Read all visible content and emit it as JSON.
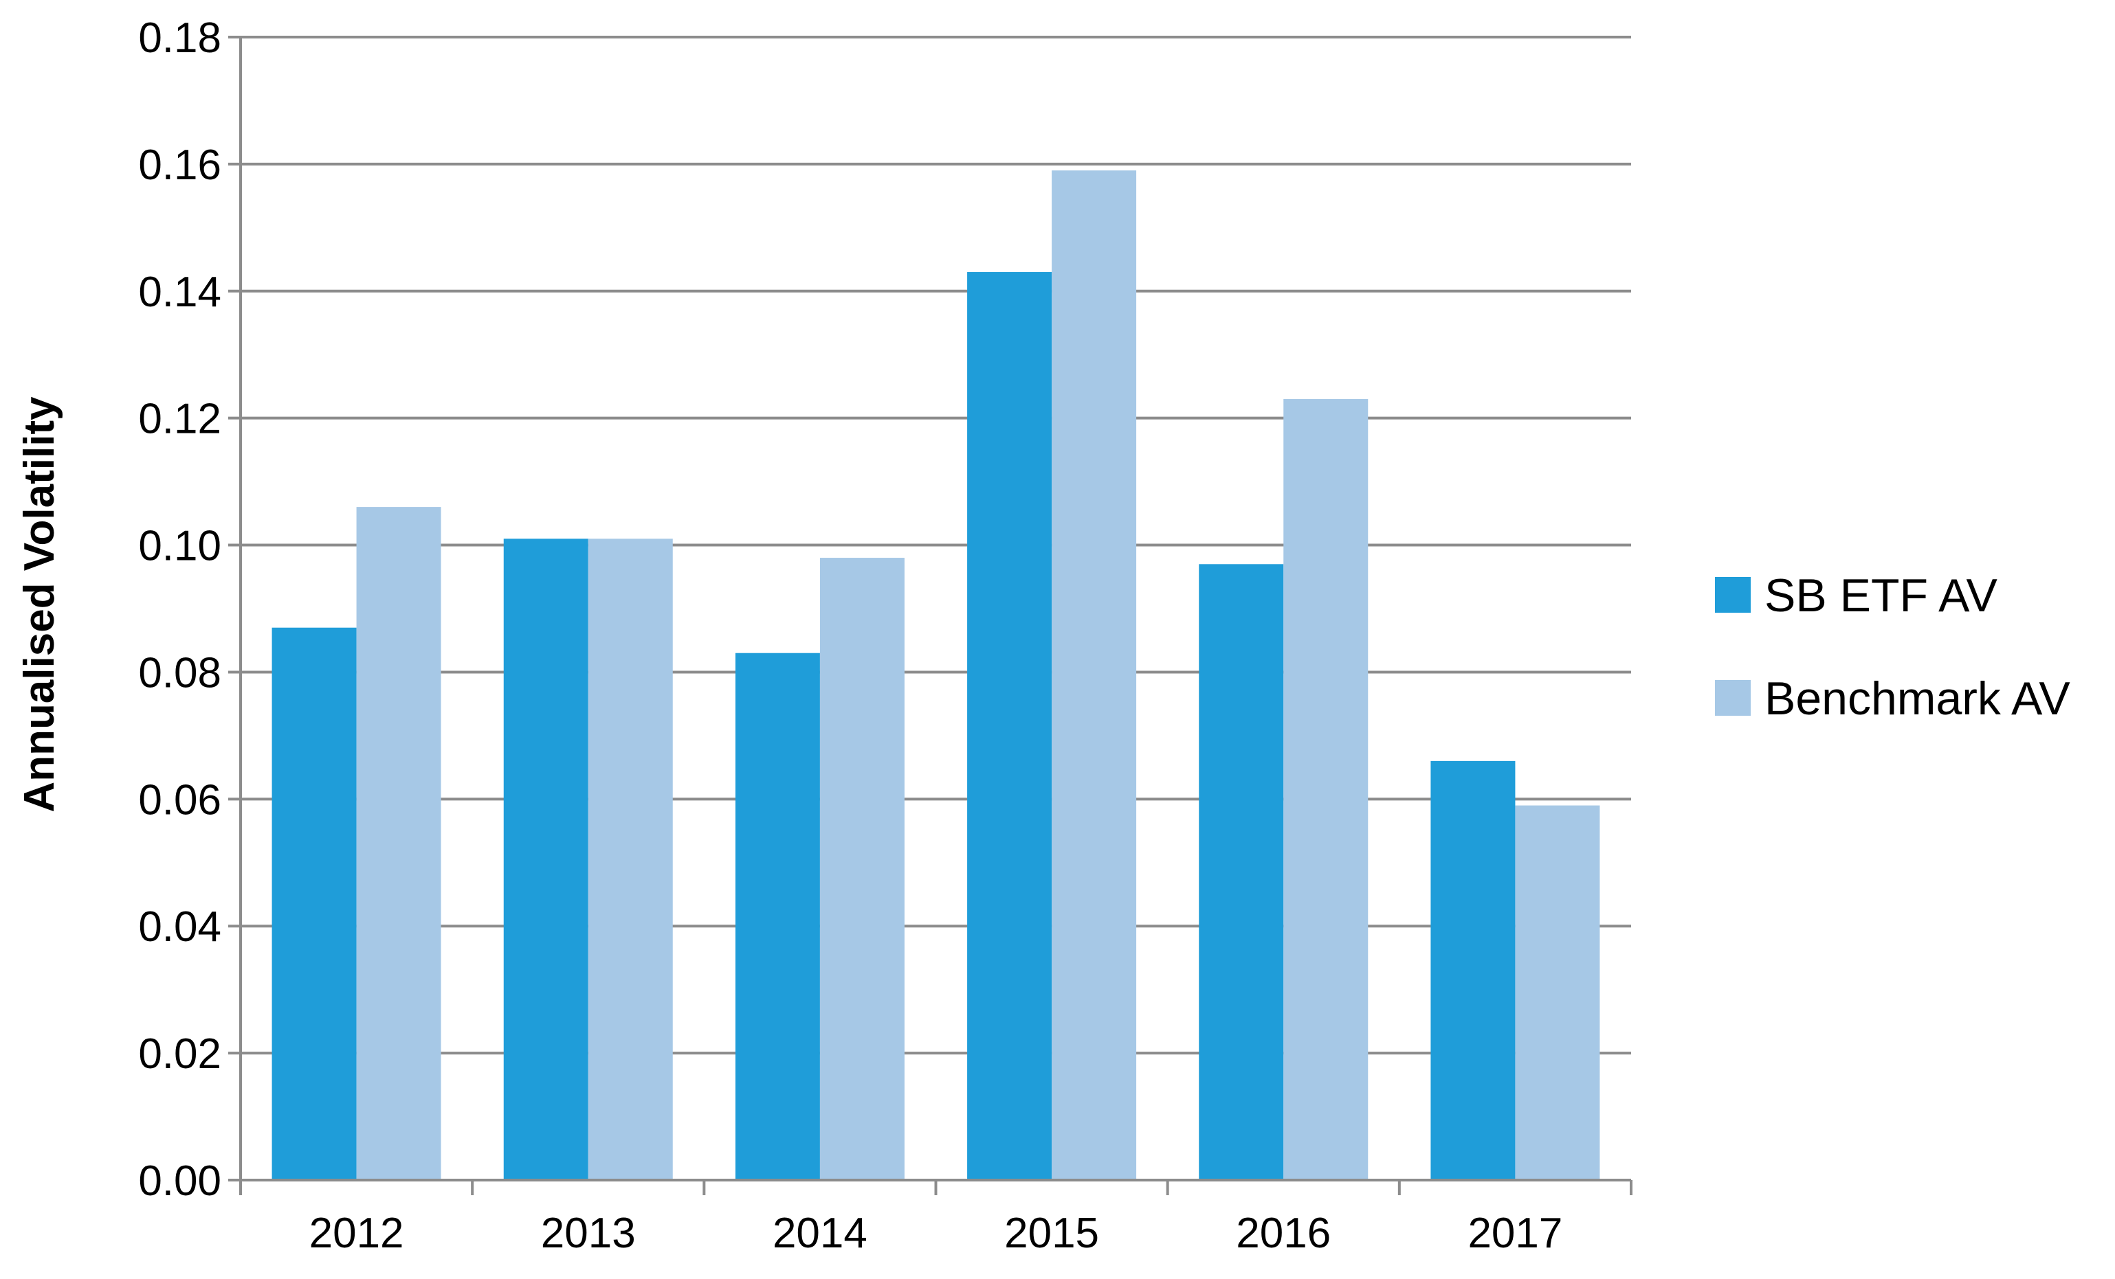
{
  "chart_data": {
    "type": "bar",
    "title": "",
    "xlabel": "",
    "ylabel": "Annualised Volatility",
    "categories": [
      "2012",
      "2013",
      "2014",
      "2015",
      "2016",
      "2017"
    ],
    "series": [
      {
        "name": "SB ETF AV",
        "color": "#1f9dd9",
        "values": [
          0.087,
          0.101,
          0.083,
          0.143,
          0.097,
          0.066
        ]
      },
      {
        "name": "Benchmark AV",
        "color": "#a6c8e6",
        "values": [
          0.106,
          0.101,
          0.098,
          0.159,
          0.123,
          0.059
        ]
      }
    ],
    "ylim": [
      0,
      0.18
    ],
    "yticks": [
      "0.00",
      "0.02",
      "0.04",
      "0.06",
      "0.08",
      "0.10",
      "0.12",
      "0.14",
      "0.16",
      "0.18"
    ],
    "grid": true,
    "legend_position": "right"
  }
}
